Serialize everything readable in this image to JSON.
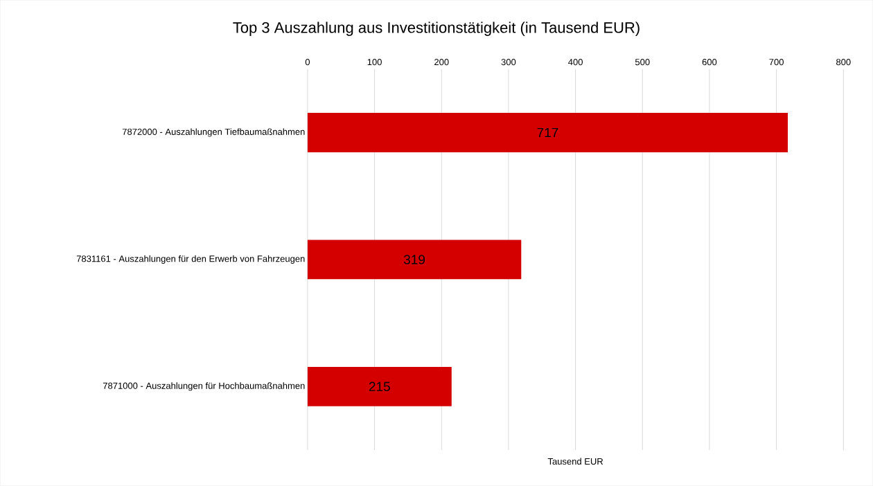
{
  "chart_data": {
    "type": "bar",
    "orientation": "horizontal",
    "title": "Top 3 Auszahlung aus Investitionstätigkeit (in Tausend EUR)",
    "xlabel": "Tausend EUR",
    "categories": [
      "7872000 - Auszahlungen Tiefbaumaßnahmen",
      "7831161 - Auszahlungen für den Erwerb von Fahrzeugen",
      "7871000 - Auszahlungen für Hochbaumaßnahmen"
    ],
    "values": [
      717,
      319,
      215
    ],
    "color": "#d40000",
    "data_labels": true,
    "xlim": [
      0,
      800
    ],
    "xticks": [
      0,
      100,
      200,
      300,
      400,
      500,
      600,
      700,
      800
    ],
    "grid": "x"
  }
}
